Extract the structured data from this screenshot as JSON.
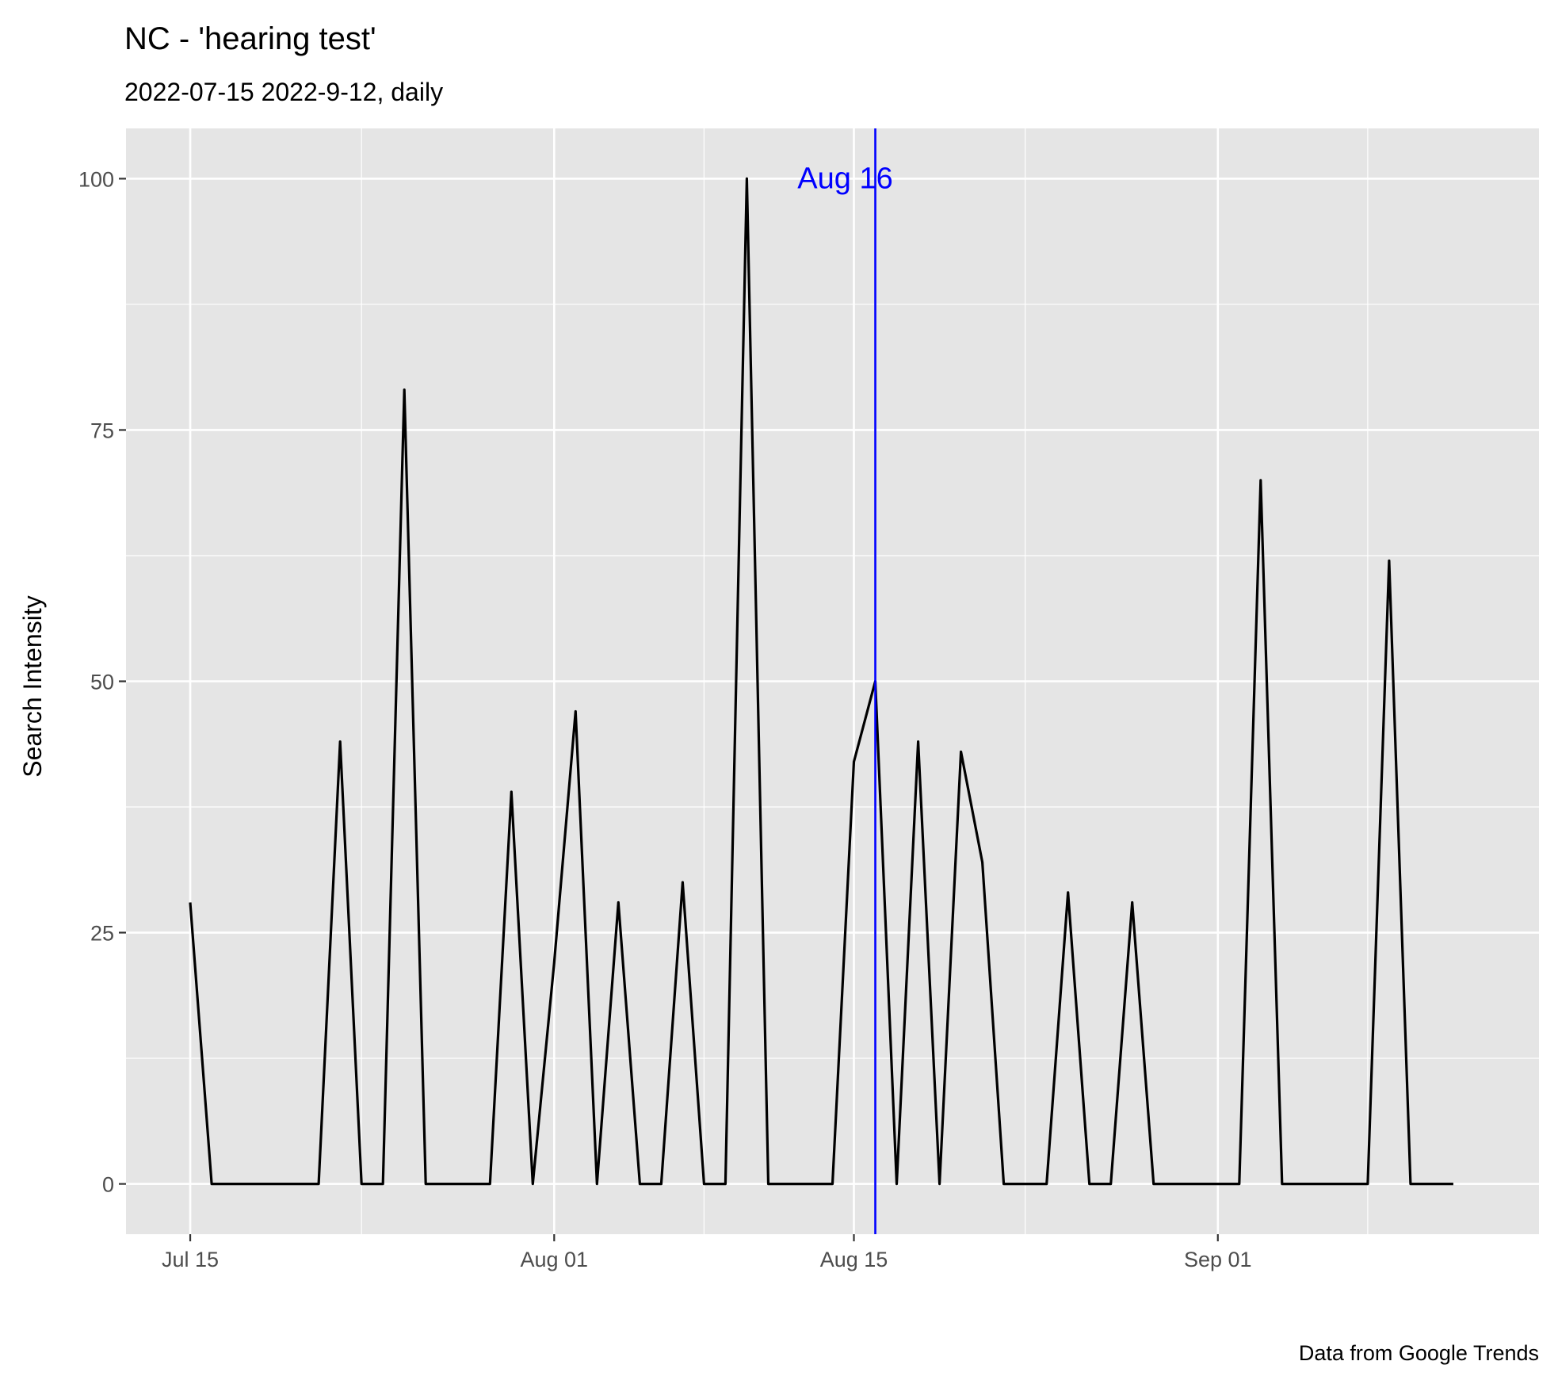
{
  "chart_data": {
    "type": "line",
    "title": "NC  - 'hearing test'",
    "subtitle": "2022-07-15 2022-9-12, daily",
    "ylabel": "Search Intensity",
    "xlabel": "",
    "caption": "Data from Google Trends",
    "xlim": [
      "2022-07-12",
      "2022-09-16"
    ],
    "ylim": [
      -5,
      105
    ],
    "x_ticks": [
      {
        "date": "2022-07-15",
        "label": "Jul 15"
      },
      {
        "date": "2022-08-01",
        "label": "Aug 01"
      },
      {
        "date": "2022-08-15",
        "label": "Aug 15"
      },
      {
        "date": "2022-09-01",
        "label": "Sep 01"
      }
    ],
    "x_minor_breaks": [
      "2022-07-23",
      "2022-08-08",
      "2022-08-23",
      "2022-09-08"
    ],
    "y_ticks": [
      0,
      25,
      50,
      75,
      100
    ],
    "y_minor_breaks": [
      12.5,
      37.5,
      62.5,
      87.5
    ],
    "grid": true,
    "series": [
      {
        "color": "#000000",
        "x": [
          "2022-07-15",
          "2022-07-16",
          "2022-07-17",
          "2022-07-18",
          "2022-07-19",
          "2022-07-20",
          "2022-07-21",
          "2022-07-22",
          "2022-07-23",
          "2022-07-24",
          "2022-07-25",
          "2022-07-26",
          "2022-07-27",
          "2022-07-28",
          "2022-07-29",
          "2022-07-30",
          "2022-07-31",
          "2022-08-01",
          "2022-08-02",
          "2022-08-03",
          "2022-08-04",
          "2022-08-05",
          "2022-08-06",
          "2022-08-07",
          "2022-08-08",
          "2022-08-09",
          "2022-08-10",
          "2022-08-11",
          "2022-08-12",
          "2022-08-13",
          "2022-08-14",
          "2022-08-15",
          "2022-08-16",
          "2022-08-17",
          "2022-08-18",
          "2022-08-19",
          "2022-08-20",
          "2022-08-21",
          "2022-08-22",
          "2022-08-23",
          "2022-08-24",
          "2022-08-25",
          "2022-08-26",
          "2022-08-27",
          "2022-08-28",
          "2022-08-29",
          "2022-08-30",
          "2022-08-31",
          "2022-09-01",
          "2022-09-02",
          "2022-09-03",
          "2022-09-04",
          "2022-09-05",
          "2022-09-06",
          "2022-09-07",
          "2022-09-08",
          "2022-09-09",
          "2022-09-10",
          "2022-09-11",
          "2022-09-12"
        ],
        "values": [
          28,
          0,
          0,
          0,
          0,
          0,
          0,
          44,
          0,
          0,
          79,
          0,
          0,
          0,
          0,
          39,
          0,
          22,
          47,
          0,
          28,
          0,
          0,
          30,
          0,
          0,
          100,
          0,
          0,
          0,
          0,
          42,
          50,
          0,
          44,
          0,
          43,
          32,
          0,
          0,
          0,
          29,
          0,
          0,
          28,
          0,
          0,
          0,
          0,
          0,
          70,
          0,
          0,
          0,
          0,
          0,
          62,
          0,
          0,
          0
        ]
      }
    ],
    "annotations": [
      {
        "x": "2022-08-16",
        "type": "vline",
        "color": "#0000ff"
      },
      {
        "x": "2022-08-16",
        "y": 100,
        "text": "Aug 16",
        "color": "#0000ff"
      }
    ],
    "panel_background": "#e5e5e5",
    "grid_color": "#ffffff"
  }
}
